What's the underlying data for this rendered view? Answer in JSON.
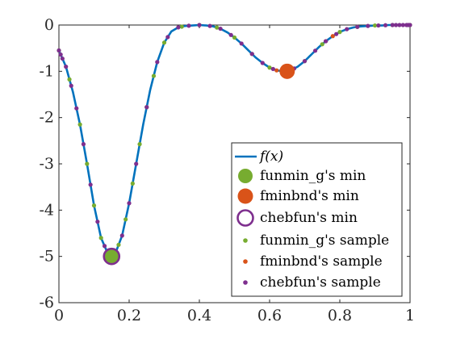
{
  "chart_data": {
    "type": "line",
    "xlim": [
      0,
      1
    ],
    "ylim": [
      -6,
      0
    ],
    "x_ticks": [
      "0",
      "0.2",
      "0.4",
      "0.6",
      "0.8",
      "1"
    ],
    "y_ticks": [
      "0",
      "-1",
      "-2",
      "-3",
      "-4",
      "-5",
      "-6"
    ],
    "grid": false,
    "legend_position": "bottom-right",
    "series": [
      {
        "name": "f(x)",
        "kind": "line",
        "color": "#0072bd",
        "x": [
          0,
          0.02,
          0.04,
          0.06,
          0.08,
          0.1,
          0.12,
          0.14,
          0.15,
          0.16,
          0.18,
          0.2,
          0.22,
          0.24,
          0.26,
          0.28,
          0.3,
          0.32,
          0.34,
          0.36,
          0.38,
          0.4,
          0.42,
          0.44,
          0.46,
          0.48,
          0.5,
          0.52,
          0.54,
          0.56,
          0.58,
          0.6,
          0.62,
          0.64,
          0.65,
          0.66,
          0.68,
          0.7,
          0.72,
          0.74,
          0.76,
          0.78,
          0.8,
          0.82,
          0.84,
          0.86,
          0.88,
          0.9,
          0.92,
          0.94,
          0.96,
          0.98,
          1
        ],
        "y": [
          -0.55,
          -0.9,
          -1.45,
          -2.15,
          -3.0,
          -3.9,
          -4.6,
          -4.95,
          -5.0,
          -4.95,
          -4.55,
          -3.85,
          -3.0,
          -2.15,
          -1.4,
          -0.8,
          -0.38,
          -0.14,
          -0.05,
          -0.02,
          -0.01,
          0,
          -0.01,
          -0.03,
          -0.08,
          -0.16,
          -0.27,
          -0.4,
          -0.55,
          -0.7,
          -0.82,
          -0.92,
          -0.98,
          -1.0,
          -1.0,
          -0.98,
          -0.9,
          -0.78,
          -0.63,
          -0.48,
          -0.35,
          -0.24,
          -0.15,
          -0.09,
          -0.05,
          -0.03,
          -0.02,
          -0.01,
          -0.01,
          0,
          0,
          0,
          0
        ]
      },
      {
        "name": "funmin_g's min",
        "kind": "marker-large-filled",
        "color": "#77ac30",
        "points": [
          [
            0.15,
            -5.0
          ]
        ]
      },
      {
        "name": "fminbnd's min",
        "kind": "marker-large-filled",
        "color": "#d95319",
        "points": [
          [
            0.65,
            -1.0
          ]
        ]
      },
      {
        "name": "chebfun's min",
        "kind": "marker-large-hollow",
        "color": "#7e2f8e",
        "points": [
          [
            0.15,
            -5.0
          ]
        ]
      },
      {
        "name": "funmin_g's sample",
        "kind": "marker-small",
        "color": "#77ac30",
        "x": [
          0.0,
          0.03,
          0.06,
          0.08,
          0.1,
          0.12,
          0.14,
          0.16,
          0.17,
          0.19,
          0.21,
          0.23,
          0.25,
          0.27,
          0.3,
          0.35,
          0.4,
          0.45,
          0.5,
          0.55,
          0.6,
          0.65,
          0.7,
          0.75,
          0.8,
          0.85,
          0.9,
          0.95,
          1.0
        ]
      },
      {
        "name": "fminbnd's sample",
        "kind": "marker-small",
        "color": "#d95319",
        "x": [
          0.62,
          0.64,
          0.66,
          0.76,
          0.78
        ]
      },
      {
        "name": "chebfun's sample",
        "kind": "marker-small",
        "color": "#7e2f8e",
        "x": [
          0.0,
          0.005,
          0.01,
          0.02,
          0.035,
          0.05,
          0.07,
          0.09,
          0.11,
          0.13,
          0.145,
          0.16,
          0.18,
          0.2,
          0.22,
          0.25,
          0.28,
          0.31,
          0.34,
          0.37,
          0.4,
          0.43,
          0.46,
          0.49,
          0.52,
          0.55,
          0.58,
          0.61,
          0.64,
          0.67,
          0.7,
          0.73,
          0.76,
          0.79,
          0.82,
          0.85,
          0.88,
          0.91,
          0.93,
          0.95,
          0.96,
          0.97,
          0.98,
          0.99,
          0.995,
          1.0
        ]
      }
    ]
  },
  "legend": {
    "items": [
      {
        "label": "f(x)"
      },
      {
        "label": "funmin_g's min"
      },
      {
        "label": "fminbnd's min"
      },
      {
        "label": "chebfun's min"
      },
      {
        "label": "funmin_g's sample"
      },
      {
        "label": "fminbnd's sample"
      },
      {
        "label": "chebfun's sample"
      }
    ]
  }
}
